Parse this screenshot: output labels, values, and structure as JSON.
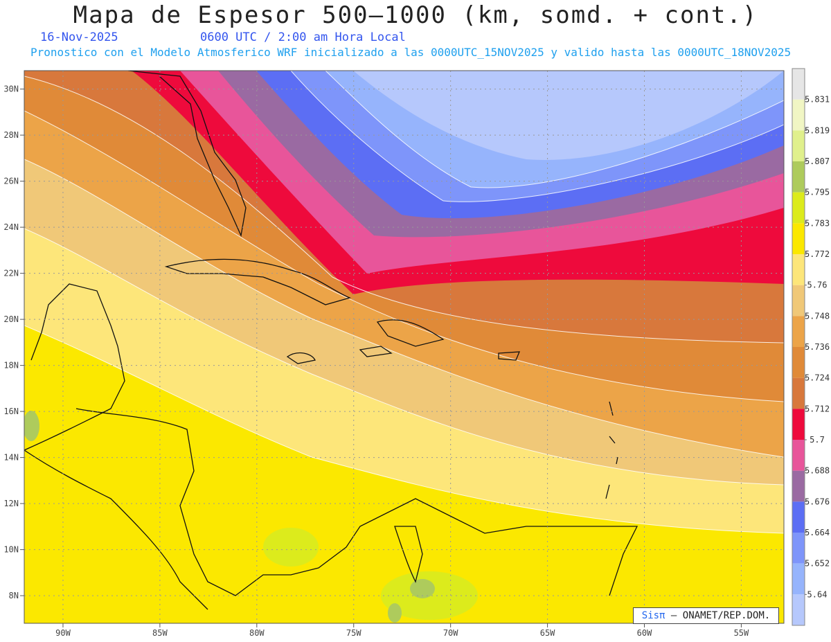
{
  "header": {
    "title": "Mapa de Espesor 500–1000 (km, somd. + cont.)",
    "date": "16-Nov-2025",
    "time": "0600 UTC / 2:00 am Hora Local",
    "info": "Pronostico con el Modelo Atmosferico WRF inicializado a las 0000UTC_15NOV2025 y valido hasta las  0000UTC_18NOV2025"
  },
  "map_data": {
    "projection": "lat-lon",
    "lon_range": [
      -92,
      -52.8
    ],
    "lat_range": [
      6.8,
      30.8
    ],
    "lon_ticks": [
      {
        "value": -90,
        "label": "90W"
      },
      {
        "value": -85,
        "label": "85W"
      },
      {
        "value": -80,
        "label": "80W"
      },
      {
        "value": -75,
        "label": "75W"
      },
      {
        "value": -70,
        "label": "70W"
      },
      {
        "value": -65,
        "label": "65W"
      },
      {
        "value": -60,
        "label": "60W"
      },
      {
        "value": -55,
        "label": "55W"
      }
    ],
    "lat_ticks": [
      {
        "value": 30,
        "label": "30N"
      },
      {
        "value": 28,
        "label": "28N"
      },
      {
        "value": 26,
        "label": "26N"
      },
      {
        "value": 24,
        "label": "24N"
      },
      {
        "value": 22,
        "label": "22N"
      },
      {
        "value": 20,
        "label": "20N"
      },
      {
        "value": 18,
        "label": "18N"
      },
      {
        "value": 16,
        "label": "16N"
      },
      {
        "value": 14,
        "label": "14N"
      },
      {
        "value": 12,
        "label": "12N"
      },
      {
        "value": 10,
        "label": "10N"
      },
      {
        "value": 8,
        "label": "8N"
      }
    ],
    "grid": true,
    "colorbar": {
      "labels": [
        "5.831",
        "5.819",
        "5.807",
        "5.795",
        "5.783",
        "5.772",
        "5.76",
        "5.748",
        "5.736",
        "5.724",
        "5.712",
        "5.7",
        "5.688",
        "5.676",
        "5.664",
        "5.652",
        "5.64"
      ],
      "colors": [
        "#e6e6e6",
        "#f1f6c4",
        "#e0f08c",
        "#aecb5c",
        "#dceb1c",
        "#fbe800",
        "#fde67a",
        "#f0c878",
        "#eca448",
        "#e08a38",
        "#d8783c",
        "#ee0a3c",
        "#e8559a",
        "#9a6aa2",
        "#5c6ef4",
        "#7e95fa",
        "#96b4fc",
        "#b6c8fc"
      ],
      "color_order": "top-to-bottom"
    }
  },
  "credit": {
    "brand": "Sisπ",
    "text": "– ONAMET/REP.DOM."
  }
}
